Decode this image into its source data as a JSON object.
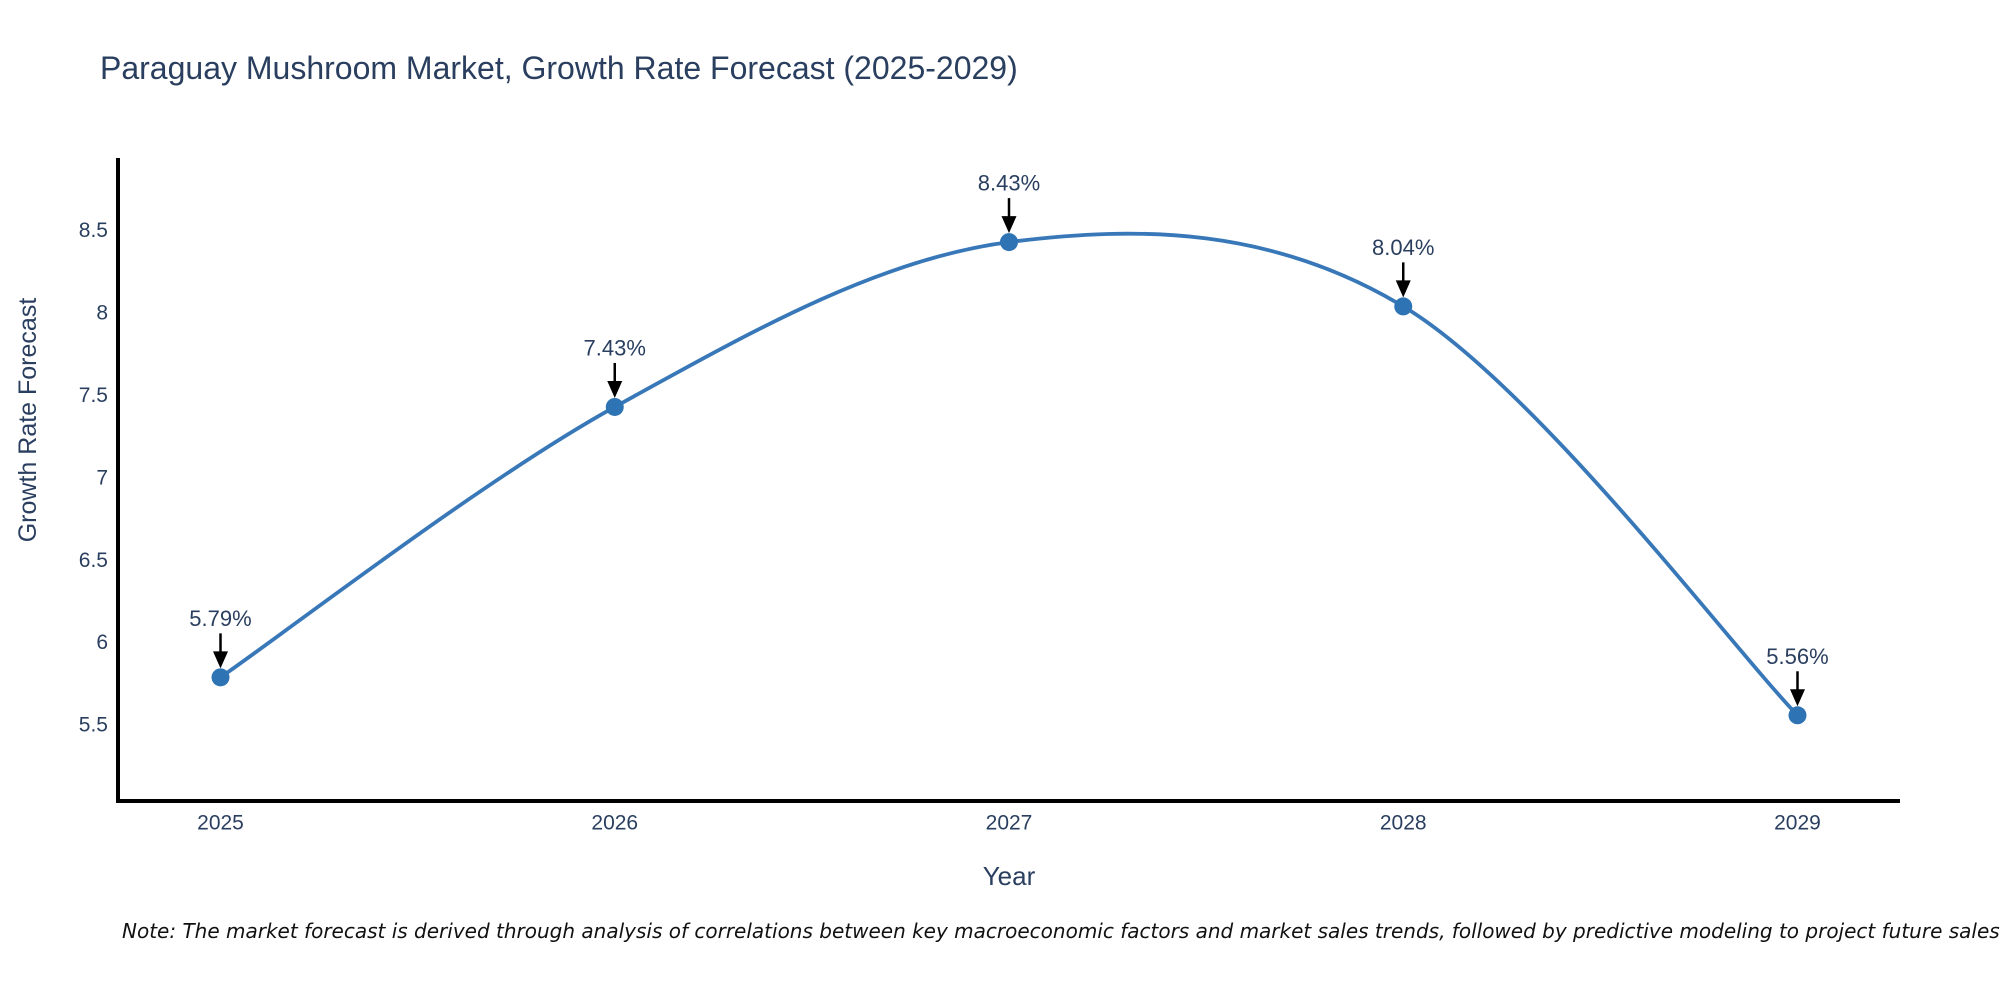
{
  "chart": {
    "title": "Paraguay Mushroom Market, Growth Rate Forecast (2025-2029)",
    "xlabel": "Year",
    "ylabel": "Growth Rate Forecast",
    "note": "Note: The market forecast is derived through analysis of correlations between key macroeconomic factors and market sales trends, followed by predictive modeling to project future sales"
  },
  "chart_data": {
    "type": "line",
    "title": "Paraguay Mushroom Market, Growth Rate Forecast (2025-2029)",
    "xlabel": "Year",
    "ylabel": "Growth Rate Forecast",
    "x": [
      2025,
      2026,
      2027,
      2028,
      2029
    ],
    "values": [
      5.79,
      7.43,
      8.43,
      8.04,
      5.56
    ],
    "point_labels": [
      "5.79%",
      "7.43%",
      "8.43%",
      "8.04%",
      "5.56%"
    ],
    "xticks": [
      "2025",
      "2026",
      "2027",
      "2028",
      "2029"
    ],
    "yticks": [
      5.5,
      6,
      6.5,
      7,
      7.5,
      8,
      8.5
    ],
    "xlim": [
      2024.74,
      2029.26
    ],
    "ylim": [
      5.04,
      8.94
    ],
    "grid": false,
    "legend_position": "none",
    "line_shape": "spline",
    "line_color": "#3878b8",
    "marker_color": "#2e73b4",
    "axis_color": "#000000",
    "tick_color": "#2a3f5f",
    "annotation_text_color": "#2a3f5f",
    "annotation_arrow_color": "#000000"
  }
}
